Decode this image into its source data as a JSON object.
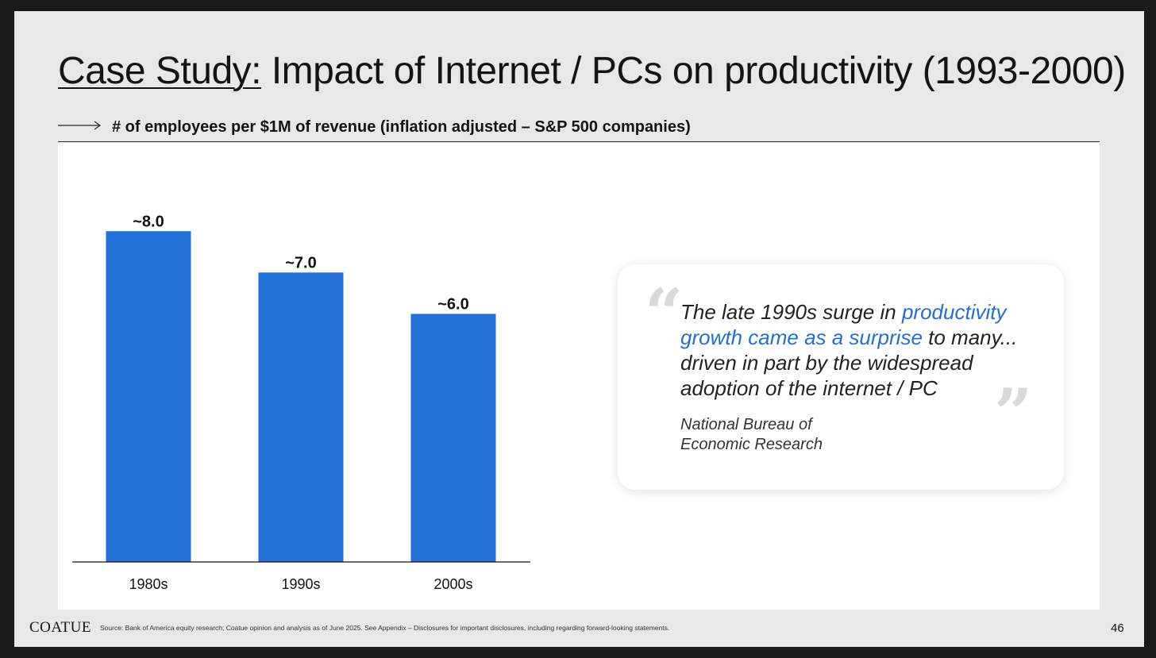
{
  "title": {
    "prefix": "Case Study:",
    "main": "Impact of Internet / PCs on productivity (1993-2000)"
  },
  "subtitle": "# of employees per $1M of revenue (inflation adjusted – S&P 500 companies)",
  "chart_data": {
    "type": "bar",
    "categories": [
      "1980s",
      "1990s",
      "2000s"
    ],
    "values": [
      8.0,
      7.0,
      6.0
    ],
    "data_labels": [
      "~8.0",
      "~7.0",
      "~6.0"
    ],
    "title": "# of employees per $1M of revenue (inflation adjusted – S&P 500 companies)",
    "ylim": [
      0,
      8.6
    ],
    "grid": false,
    "y_axis_visible": false,
    "bar_color": "#2171d9"
  },
  "quote": {
    "text_before": "The late 1990s surge in ",
    "highlight": "productivity growth came as a surprise",
    "text_after": " to many... driven in part by the widespread adoption of the internet / PC",
    "highlight_color": "#1e6fd9",
    "open_mark": "“",
    "close_mark": "”",
    "attribution_line1": "National Bureau of",
    "attribution_line2": "Economic Research"
  },
  "footer": {
    "logo": "COATUE",
    "source": "Source: Bank of America equity research; Coatue opinion and analysis as of June 2025. See Appendix – Disclosures for important disclosures, including regarding forward-looking statements.",
    "page_number": "46"
  }
}
